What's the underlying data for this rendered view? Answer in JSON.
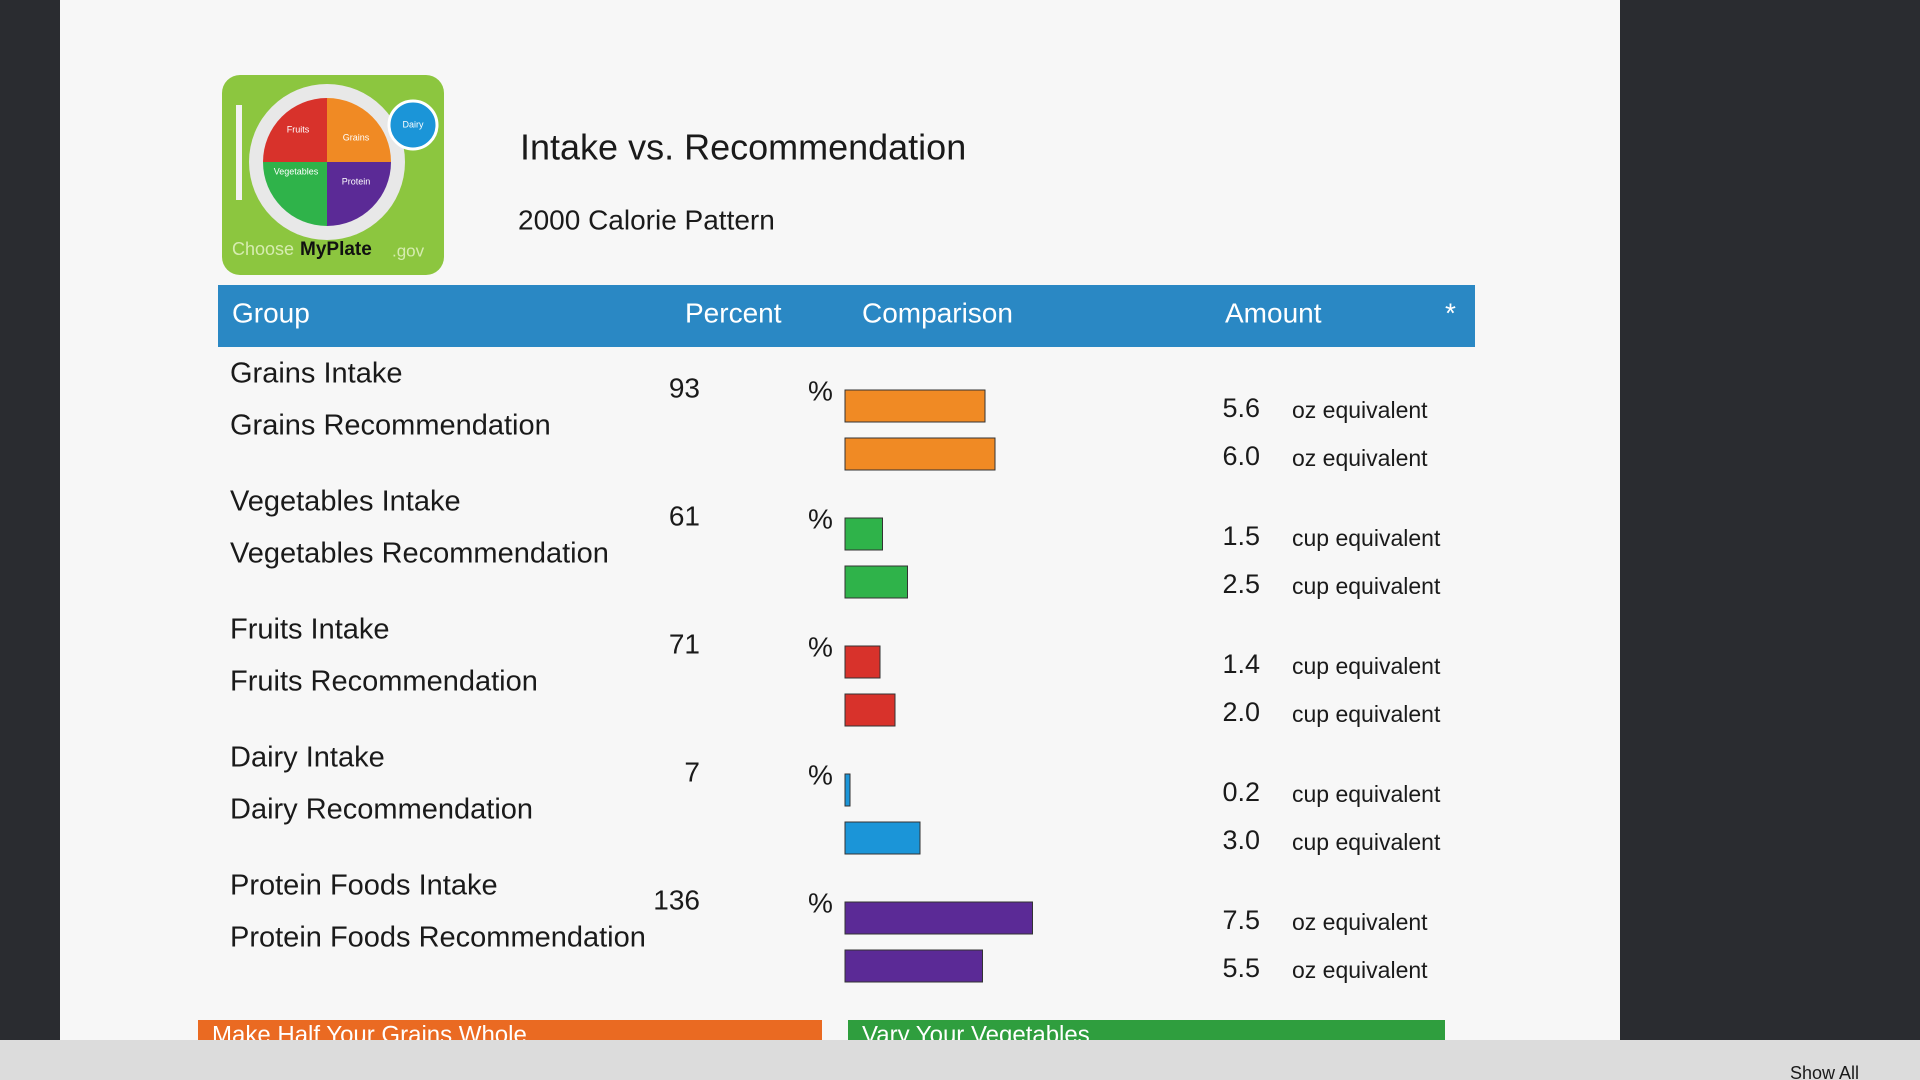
{
  "header": {
    "title": "Intake vs. Recommendation",
    "subtitle": "2000 Calorie Pattern",
    "logo": {
      "choose": "Choose",
      "brand": "MyPlate",
      "suffix": ".gov",
      "fruits": "Fruits",
      "grains": "Grains",
      "vegetables": "Vegetables",
      "protein": "Protein",
      "dairy": "Dairy"
    }
  },
  "table": {
    "columns": [
      "Group",
      "Percent",
      "Comparison",
      "Amount",
      "*"
    ],
    "rows": [
      {
        "intake_label": "Grains Intake",
        "recommendation_label": "Grains Recommendation",
        "percent": 93,
        "percent_sign": "%",
        "color": "#f08a24",
        "intake_amount": {
          "value": 5.6,
          "label": "5.6"
        },
        "intake_unit": "oz equivalent",
        "recommendation_amount": {
          "value": 6.0,
          "label": "6.0"
        },
        "recommendation_unit": "oz equivalent"
      },
      {
        "intake_label": "Vegetables Intake",
        "recommendation_label": "Vegetables Recommendation",
        "percent": 61,
        "percent_sign": "%",
        "color": "#2fb34a",
        "intake_amount": {
          "value": 1.5,
          "label": "1.5"
        },
        "intake_unit": "cup equivalent",
        "recommendation_amount": {
          "value": 2.5,
          "label": "2.5"
        },
        "recommendation_unit": "cup equivalent"
      },
      {
        "intake_label": "Fruits Intake",
        "recommendation_label": "Fruits Recommendation",
        "percent": 71,
        "percent_sign": "%",
        "color": "#d8322b",
        "intake_amount": {
          "value": 1.4,
          "label": "1.4"
        },
        "intake_unit": "cup equivalent",
        "recommendation_amount": {
          "value": 2.0,
          "label": "2.0"
        },
        "recommendation_unit": "cup equivalent"
      },
      {
        "intake_label": "Dairy Intake",
        "recommendation_label": "Dairy Recommendation",
        "percent": 7,
        "percent_sign": "%",
        "color": "#1b95d8",
        "intake_amount": {
          "value": 0.2,
          "label": "0.2"
        },
        "intake_unit": "cup equivalent",
        "recommendation_amount": {
          "value": 3.0,
          "label": "3.0"
        },
        "recommendation_unit": "cup equivalent"
      },
      {
        "intake_label": "Protein Foods Intake",
        "recommendation_label": "Protein Foods Recommendation",
        "percent": 136,
        "percent_sign": "%",
        "color": "#5b2a96",
        "intake_amount": {
          "value": 7.5,
          "label": "7.5"
        },
        "intake_unit": "oz equivalent",
        "recommendation_amount": {
          "value": 5.5,
          "label": "5.5"
        },
        "recommendation_unit": "oz equivalent"
      }
    ]
  },
  "footer": {
    "banners": [
      "Make Half Your Grains Whole",
      "Vary Your Vegetables"
    ],
    "taskbar_button": "Show All"
  }
}
